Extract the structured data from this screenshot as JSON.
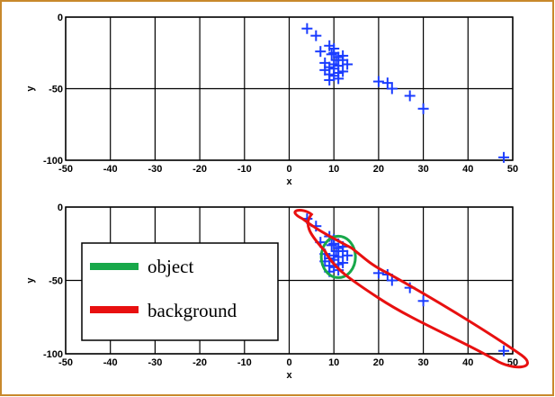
{
  "frame_color": "#c8892c",
  "chart_data": [
    {
      "type": "scatter",
      "title": "",
      "xlabel": "x",
      "ylabel": "y",
      "xlim": [
        -50,
        50
      ],
      "ylim": [
        -100,
        0
      ],
      "xticks": [
        -50,
        -40,
        -30,
        -20,
        -10,
        0,
        10,
        20,
        30,
        40,
        50
      ],
      "yticks": [
        0,
        -50,
        -100
      ],
      "grid": true,
      "marker": "+",
      "marker_color": "#1a3cff",
      "series": [
        {
          "x": [
            4,
            6,
            7,
            9,
            9.5,
            10,
            10.5,
            11,
            12,
            13,
            8,
            9,
            10,
            11,
            12,
            9,
            10,
            11,
            8,
            12,
            10,
            9,
            11,
            10,
            20,
            22,
            23,
            27,
            30,
            48
          ],
          "y": [
            -8,
            -13,
            -24,
            -20,
            -26,
            -22,
            -30,
            -28,
            -27,
            -33,
            -32,
            -35,
            -36,
            -34,
            -38,
            -40,
            -41,
            -39,
            -37,
            -30,
            -25,
            -44,
            -43,
            -33,
            -45,
            -46,
            -50,
            -55,
            -64,
            -98
          ]
        }
      ]
    },
    {
      "type": "scatter",
      "title": "",
      "xlabel": "x",
      "ylabel": "y",
      "xlim": [
        -50,
        50
      ],
      "ylim": [
        -100,
        0
      ],
      "xticks": [
        -50,
        -40,
        -30,
        -20,
        -10,
        0,
        10,
        20,
        30,
        40,
        50
      ],
      "yticks": [
        0,
        -50,
        -100
      ],
      "grid": true,
      "marker": "+",
      "marker_color": "#1a3cff",
      "series": [
        {
          "x": [
            4,
            6,
            7,
            9,
            9.5,
            10,
            10.5,
            11,
            12,
            13,
            8,
            9,
            10,
            11,
            12,
            9,
            10,
            11,
            8,
            12,
            10,
            9,
            11,
            10,
            20,
            22,
            23,
            27,
            30,
            48
          ],
          "y": [
            -8,
            -13,
            -24,
            -20,
            -26,
            -22,
            -30,
            -28,
            -27,
            -33,
            -32,
            -35,
            -36,
            -34,
            -38,
            -40,
            -41,
            -39,
            -37,
            -30,
            -25,
            -44,
            -43,
            -33,
            -45,
            -46,
            -50,
            -55,
            -64,
            -98
          ]
        }
      ],
      "annotations": {
        "object_color": "#18a84a",
        "background_color": "#e81010"
      },
      "legend": {
        "position": "lower-left",
        "entries": [
          {
            "label": "object",
            "color": "#18a84a"
          },
          {
            "label": "background",
            "color": "#e81010"
          }
        ]
      }
    }
  ]
}
